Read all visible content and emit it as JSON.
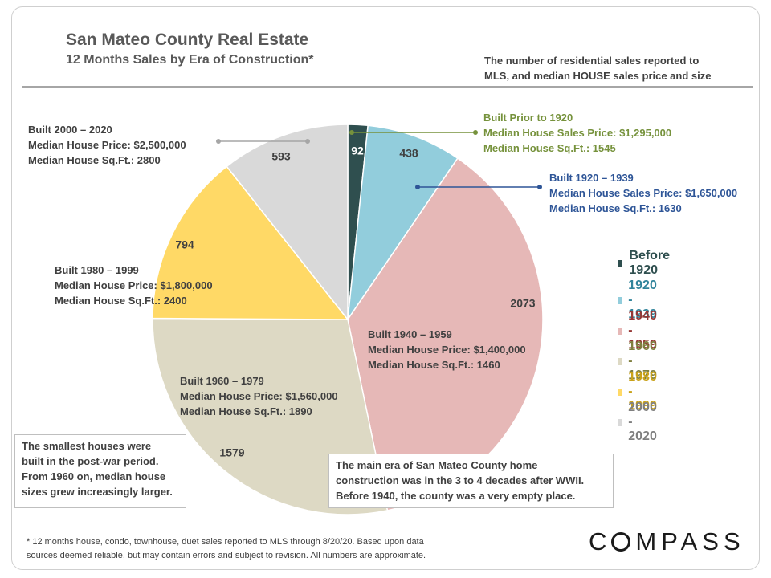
{
  "header": {
    "title": "San Mateo County Real Estate",
    "subtitle": "12 Months  Sales by Era of Construction*",
    "note_lines": [
      "The number of residential sales reported to",
      "MLS, and median HOUSE sales price and size"
    ]
  },
  "chart_data": {
    "type": "pie",
    "title": "San Mateo County Real Estate",
    "subtitle": "12 Months  Sales by Era of Construction*",
    "categories": [
      "Before 1920",
      "1920 - 1939",
      "1940 - 1959",
      "1960 - 1979",
      "1980 - 1999",
      "2000 - 2020"
    ],
    "values": [
      92,
      438,
      2073,
      1579,
      794,
      593
    ],
    "data_labels": [
      "92",
      "438",
      "2073",
      "1579",
      "794",
      "593"
    ],
    "colors": [
      "#2f4f4f",
      "#92cddc",
      "#e6b8b7",
      "#ddd9c4",
      "#ffd966",
      "#d9d9d9"
    ],
    "legend_text_colors": [
      "#2f4f4f",
      "#31849b",
      "#953735",
      "#7f7f3f",
      "#c9a21a",
      "#7f7f7f"
    ],
    "legend_position": "right",
    "start": "top, clockwise"
  },
  "callouts": [
    {
      "lines": [
        "Built Prior to 1920",
        "Median House Sales Price: $1,295,000",
        "Median House Sq.Ft.: 1545"
      ],
      "color": "#76923c"
    },
    {
      "lines": [
        "Built 1920 – 1939",
        "Median House Sales Price: $1,650,000",
        "Median House Sq.Ft.: 1630"
      ],
      "color": "#2e5597"
    },
    {
      "lines": [
        "Built 1940 – 1959",
        "Median House Price: $1,400,000",
        "Median House Sq.Ft.: 1460"
      ],
      "color": "#404040"
    },
    {
      "lines": [
        "Built 1960 – 1979",
        "Median House Price: $1,560,000",
        "Median House Sq.Ft.: 1890"
      ],
      "color": "#404040"
    },
    {
      "lines": [
        "Built 1980 – 1999",
        "Median House Price: $1,800,000",
        "Median House Sq.Ft.: 2400"
      ],
      "color": "#404040"
    },
    {
      "lines": [
        "Built 2000 – 2020",
        "Median House Price:  $2,500,000",
        "Median House Sq.Ft.: 2800"
      ],
      "color": "#404040"
    }
  ],
  "notes": {
    "smallest": [
      "The smallest houses were",
      "built in the post-war period.",
      "From 1960 on, median house",
      "sizes grew increasingly larger."
    ],
    "main_era": [
      "The main era of San Mateo County home",
      "construction was in the 3 to 4 decades after WWII.",
      "Before 1940, the county was a very empty place."
    ]
  },
  "footnote": [
    "* 12 months house, condo, townhouse, duet sales reported to MLS through 8/20/20. Based upon data",
    "sources deemed reliable, but may contain errors and subject to revision. All numbers are approximate."
  ],
  "logo": "COMPASS"
}
